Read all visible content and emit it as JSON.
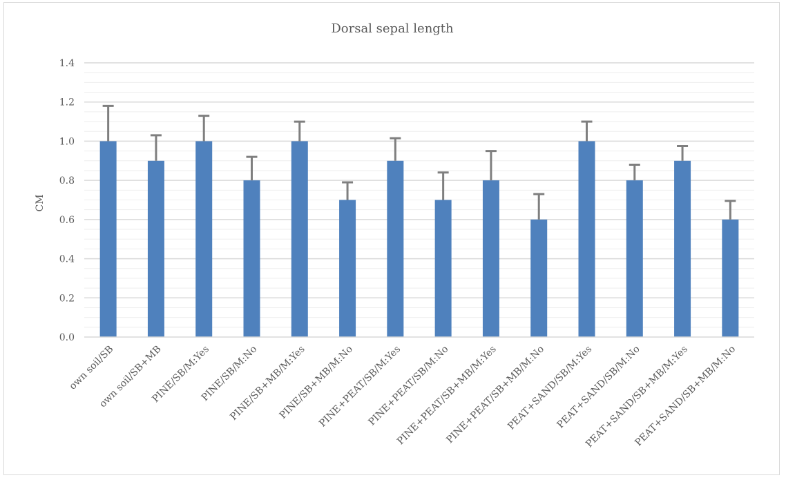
{
  "chart_data": {
    "type": "bar",
    "title": "Dorsal sepal length",
    "xlabel": "",
    "ylabel": "CM",
    "ylim": [
      0,
      1.4
    ],
    "yticks": [
      "0.0",
      "0.2",
      "0.4",
      "0.6",
      "0.8",
      "1.0",
      "1.2",
      "1.4"
    ],
    "grid": true,
    "legend": "none",
    "bar_color": "#4f81bd",
    "error_bar_color": "#7f7f7f",
    "categories": [
      "own soil/SB",
      "own soil/SB+MB",
      "PINE/SB/M:Yes",
      "PINE/SB/M:No",
      "PINE/SB+MB/M:Yes",
      "PINE/SB+MB/M:No",
      "PINE+PEAT/SB/M:Yes",
      "PINE+PEAT/SB/M:No",
      "PINE+PEAT/SB+MB/M:Yes",
      "PINE+PEAT/SB+MB/M:No",
      "PEAT+SAND/SB/M:Yes",
      "PEAT+SAND/SB/M:No",
      "PEAT+SAND/SB+MB/M:Yes",
      "PEAT+SAND/SB+MB/M:No"
    ],
    "values": [
      1.0,
      0.9,
      1.0,
      0.8,
      1.0,
      0.7,
      0.9,
      0.7,
      0.8,
      0.6,
      1.0,
      0.8,
      0.9,
      0.6
    ],
    "error_upper": [
      0.18,
      0.13,
      0.13,
      0.12,
      0.1,
      0.09,
      0.115,
      0.14,
      0.15,
      0.13,
      0.1,
      0.08,
      0.075,
      0.095
    ]
  }
}
